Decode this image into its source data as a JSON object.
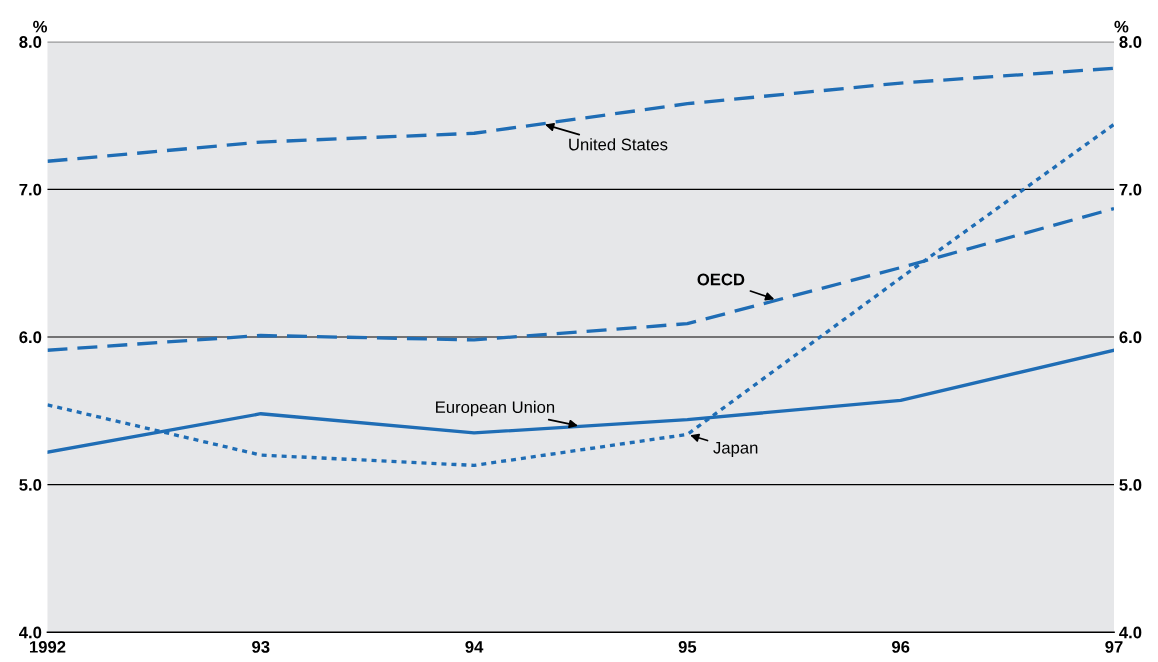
{
  "chart_data": {
    "type": "line",
    "ylabel": "%",
    "y2label": "%",
    "categories": [
      "1992",
      "93",
      "94",
      "95",
      "96",
      "97"
    ],
    "series": [
      {
        "name": "United States",
        "color": "#1f6db5",
        "line_style": "dashed",
        "values": [
          7.19,
          7.32,
          7.38,
          7.58,
          7.72,
          7.82
        ]
      },
      {
        "name": "OECD",
        "color": "#1f6db5",
        "line_style": "dashed",
        "values": [
          5.91,
          6.01,
          5.98,
          6.09,
          6.47,
          6.87
        ]
      },
      {
        "name": "European Union",
        "color": "#1f6db5",
        "line_style": "solid",
        "values": [
          5.22,
          5.48,
          5.35,
          5.44,
          5.57,
          5.91
        ]
      },
      {
        "name": "Japan",
        "color": "#1f6db5",
        "line_style": "dotted",
        "values": [
          5.54,
          5.2,
          5.13,
          5.34,
          6.4,
          7.44
        ]
      }
    ],
    "ylim": [
      4,
      8
    ],
    "yticks": [
      {
        "value": 4,
        "label": "4.0"
      },
      {
        "value": 5,
        "label": "5.0"
      },
      {
        "value": 6,
        "label": "6.0"
      },
      {
        "value": 7,
        "label": "7.0"
      },
      {
        "value": 8,
        "label": "8.0"
      }
    ],
    "y2lim": [
      4,
      8
    ],
    "y2ticks": [
      {
        "value": 4,
        "label": "4.0"
      },
      {
        "value": 5,
        "label": "5.0"
      },
      {
        "value": 6,
        "label": "6.0"
      },
      {
        "value": 7,
        "label": "7.0"
      },
      {
        "value": 8,
        "label": "8.0"
      }
    ],
    "grid": "y",
    "legend": false,
    "marker": "none"
  }
}
